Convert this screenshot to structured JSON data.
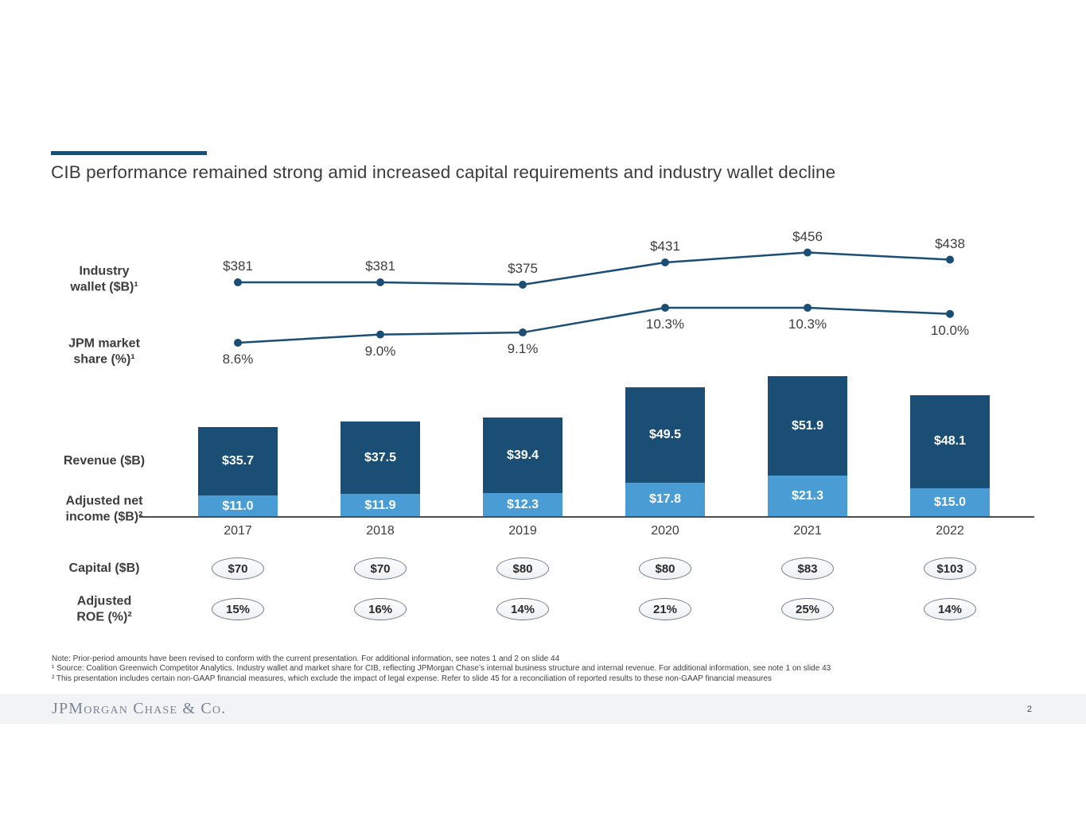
{
  "title": "CIB performance remained strong amid increased capital requirements and industry wallet decline",
  "colors": {
    "navy": "#1b4e74",
    "light_blue": "#4a9cd5",
    "text": "#3d3d3d"
  },
  "chart_data": {
    "type": "combo",
    "categories": [
      "2017",
      "2018",
      "2019",
      "2020",
      "2021",
      "2022"
    ],
    "row_labels": [
      [
        "Industry",
        "wallet ($B)¹"
      ],
      [
        "JPM market",
        "share (%)¹"
      ],
      [
        "Revenue ($B)"
      ],
      [
        "Adjusted net",
        "income ($B)²"
      ],
      [
        "Capital ($B)"
      ],
      [
        "Adjusted",
        "ROE (%)²"
      ]
    ],
    "series": [
      {
        "name": "Industry wallet ($B)¹",
        "type": "line",
        "values": [
          381,
          381,
          375,
          431,
          456,
          438
        ],
        "labels": [
          "$381",
          "$381",
          "$375",
          "$431",
          "$456",
          "$438"
        ]
      },
      {
        "name": "JPM market share (%)¹",
        "type": "line",
        "values": [
          8.6,
          9.0,
          9.1,
          10.3,
          10.3,
          10.0
        ],
        "labels": [
          "8.6%",
          "9.0%",
          "9.1%",
          "10.3%",
          "10.3%",
          "10.0%"
        ]
      },
      {
        "name": "Revenue ($B)",
        "type": "bar",
        "values": [
          35.7,
          37.5,
          39.4,
          49.5,
          51.9,
          48.1
        ],
        "labels": [
          "$35.7",
          "$37.5",
          "$39.4",
          "$49.5",
          "$51.9",
          "$48.1"
        ]
      },
      {
        "name": "Adjusted net income ($B)²",
        "type": "bar",
        "values": [
          11.0,
          11.9,
          12.3,
          17.8,
          21.3,
          15.0
        ],
        "labels": [
          "$11.0",
          "$11.9",
          "$12.3",
          "$17.8",
          "$21.3",
          "$15.0"
        ]
      },
      {
        "name": "Capital ($B)",
        "type": "badge",
        "labels": [
          "$70",
          "$70",
          "$80",
          "$80",
          "$83",
          "$103"
        ]
      },
      {
        "name": "Adjusted ROE (%)²",
        "type": "badge",
        "labels": [
          "15%",
          "16%",
          "14%",
          "21%",
          "25%",
          "14%"
        ]
      }
    ],
    "legend_position": "left-row-labels",
    "grid": false
  },
  "footnotes": {
    "note": "Note: Prior-period amounts have been revised to conform with the current presentation. For additional information, see notes 1 and 2 on slide 44",
    "fn1": "¹ Source: Coalition Greenwich Competitor Analytics. Industry wallet and market share for CIB, reflecting JPMorgan Chase’s internal business structure and internal revenue. For additional information, see note 1 on slide 43",
    "fn2": "² This presentation includes certain non-GAAP financial measures, which exclude the impact of legal expense. Refer to slide 45 for a reconciliation of reported results to these non-GAAP financial measures"
  },
  "footer": {
    "logo": "JPMorgan Chase & Co.",
    "page": "2"
  }
}
